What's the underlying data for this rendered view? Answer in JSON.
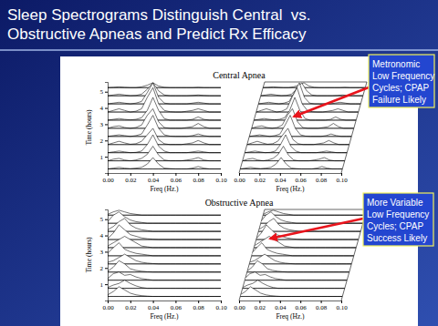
{
  "slide": {
    "title": [
      "Sleep Spectrograms Distinguish Central  vs.",
      "Obstructive Apneas and Predict Rx Efficacy"
    ],
    "annotations": [
      {
        "lines": [
          "Metronomic",
          "Low Frequency",
          "Cycles; CPAP",
          "Failure Likely"
        ]
      },
      {
        "lines": [
          "More Variable",
          "Low Frequency",
          "Cycles; CPAP",
          "Success Likely"
        ]
      }
    ]
  },
  "chart_data": [
    {
      "type": "waterfall",
      "title": "Central Apnea",
      "x_label": "Freq (Hz.)",
      "y_label": "Time (hours)",
      "xlim": [
        0,
        0.1
      ],
      "xticks": [
        {
          "value": 0,
          "label": "0.00"
        },
        {
          "value": 0.02,
          "label": "0.02"
        },
        {
          "value": 0.04,
          "label": "0.04"
        },
        {
          "value": 0.06,
          "label": "0.06"
        },
        {
          "value": 0.08,
          "label": "0.08"
        },
        {
          "value": 0.1,
          "label": "0.10"
        }
      ],
      "ylim": [
        0,
        5.6
      ],
      "yticks": [
        1,
        2,
        3,
        4,
        5
      ],
      "x": [
        0,
        0.005,
        0.01,
        0.015,
        0.02,
        0.025,
        0.03,
        0.035,
        0.04,
        0.045,
        0.05,
        0.055,
        0.06,
        0.065,
        0.07,
        0.075,
        0.08,
        0.085,
        0.09,
        0.095,
        0.1
      ],
      "series": [
        {
          "time": 0.25,
          "values": [
            0,
            0.05,
            0.1,
            0.05,
            0.02,
            0.05,
            0.1,
            0.3,
            0.7,
            0.3,
            0.05,
            0.02,
            0,
            0,
            0,
            0.05,
            0.15,
            0.05,
            0,
            0,
            0
          ]
        },
        {
          "time": 0.75,
          "values": [
            0,
            0.1,
            0.15,
            0.05,
            0,
            0.05,
            0.15,
            0.4,
            0.9,
            0.35,
            0.05,
            0,
            0,
            0,
            0.05,
            0.1,
            0.2,
            0.05,
            0,
            0,
            0
          ]
        },
        {
          "time": 1.25,
          "values": [
            0,
            0.05,
            0.1,
            0.05,
            0,
            0.02,
            0.1,
            0.5,
            1.1,
            0.4,
            0.1,
            0,
            0,
            0,
            0,
            0.05,
            0.1,
            0.05,
            0,
            0,
            0
          ]
        },
        {
          "time": 1.75,
          "values": [
            0,
            0.1,
            0.2,
            0.1,
            0.02,
            0.05,
            0.2,
            0.6,
            1.0,
            0.3,
            0.05,
            0,
            0,
            0,
            0.05,
            0.1,
            0.25,
            0.1,
            0,
            0,
            0
          ]
        },
        {
          "time": 2.25,
          "values": [
            0,
            0.05,
            0.1,
            0.05,
            0,
            0.05,
            0.15,
            0.7,
            1.3,
            0.5,
            0.1,
            0.02,
            0,
            0,
            0,
            0.05,
            0.15,
            0.05,
            0,
            0,
            0
          ]
        },
        {
          "time": 2.75,
          "values": [
            0,
            0.1,
            0.15,
            0.05,
            0,
            0.05,
            0.2,
            0.8,
            1.2,
            0.4,
            0.05,
            0,
            0,
            0,
            0.05,
            0.1,
            0.3,
            0.1,
            0,
            0,
            0
          ]
        },
        {
          "time": 3.25,
          "values": [
            0,
            0.05,
            0.1,
            0.05,
            0.02,
            0.05,
            0.15,
            0.6,
            1.4,
            0.6,
            0.1,
            0,
            0,
            0,
            0,
            0.05,
            0.2,
            0.05,
            0,
            0,
            0
          ]
        },
        {
          "time": 3.75,
          "values": [
            0,
            0.1,
            0.2,
            0.1,
            0,
            0.05,
            0.2,
            0.9,
            1.5,
            0.5,
            0.1,
            0.02,
            0,
            0,
            0.05,
            0.1,
            0.2,
            0.1,
            0,
            0,
            0
          ]
        },
        {
          "time": 4.25,
          "values": [
            0,
            0.05,
            0.1,
            0.05,
            0,
            0.05,
            0.15,
            0.7,
            1.3,
            0.4,
            0.05,
            0,
            0,
            0,
            0,
            0.05,
            0.1,
            0.05,
            0,
            0,
            0
          ]
        },
        {
          "time": 4.75,
          "values": [
            0,
            0.05,
            0.1,
            0.05,
            0,
            0.02,
            0.1,
            0.4,
            0.8,
            0.3,
            0.05,
            0,
            0,
            0,
            0,
            0.02,
            0.05,
            0.02,
            0,
            0,
            0
          ]
        },
        {
          "time": 5.25,
          "values": [
            0,
            0.02,
            0.05,
            0.02,
            0,
            0,
            0.05,
            0.15,
            0.3,
            0.1,
            0.02,
            0,
            0,
            0,
            0,
            0,
            0.02,
            0,
            0,
            0,
            0
          ]
        }
      ]
    },
    {
      "type": "waterfall",
      "title": "Obstructive Apnea",
      "x_label": "Freq (Hz.)",
      "y_label": "Time (hours)",
      "xlim": [
        0,
        0.1
      ],
      "xticks": [
        {
          "value": 0,
          "label": "0.00"
        },
        {
          "value": 0.02,
          "label": "0.02"
        },
        {
          "value": 0.04,
          "label": "0.04"
        },
        {
          "value": 0.06,
          "label": "0.06"
        },
        {
          "value": 0.08,
          "label": "0.08"
        },
        {
          "value": 0.1,
          "label": "0.10"
        }
      ],
      "ylim": [
        0,
        5.6
      ],
      "yticks": [
        1,
        2,
        3,
        4,
        5
      ],
      "x": [
        0,
        0.005,
        0.01,
        0.015,
        0.02,
        0.025,
        0.03,
        0.035,
        0.04,
        0.045,
        0.05,
        0.055,
        0.06,
        0.065,
        0.07,
        0.075,
        0.08,
        0.085,
        0.09,
        0.095,
        0.1
      ],
      "series": [
        {
          "time": 0.25,
          "values": [
            0.1,
            0.3,
            0.6,
            0.4,
            0.2,
            0.1,
            0.05,
            0.02,
            0,
            0,
            0,
            0,
            0,
            0,
            0,
            0,
            0,
            0,
            0,
            0,
            0
          ]
        },
        {
          "time": 0.75,
          "values": [
            0.05,
            0.2,
            0.3,
            0.5,
            0.3,
            0.15,
            0.05,
            0,
            0,
            0,
            0,
            0,
            0,
            0,
            0,
            0,
            0,
            0,
            0,
            0,
            0
          ]
        },
        {
          "time": 1.25,
          "values": [
            0.1,
            0.4,
            0.5,
            0.3,
            0.35,
            0.2,
            0.1,
            0.05,
            0,
            0,
            0,
            0,
            0,
            0,
            0,
            0,
            0,
            0,
            0,
            0,
            0
          ]
        },
        {
          "time": 1.75,
          "values": [
            0.05,
            0.3,
            0.7,
            0.5,
            0.2,
            0.1,
            0.05,
            0.02,
            0,
            0,
            0,
            0,
            0,
            0,
            0,
            0,
            0,
            0,
            0,
            0,
            0
          ]
        },
        {
          "time": 2.25,
          "values": [
            0.1,
            0.2,
            0.4,
            0.6,
            0.4,
            0.2,
            0.1,
            0.05,
            0.02,
            0,
            0,
            0,
            0,
            0,
            0,
            0,
            0,
            0,
            0,
            0,
            0
          ]
        },
        {
          "time": 2.75,
          "values": [
            0.15,
            0.5,
            0.8,
            0.4,
            0.25,
            0.15,
            0.1,
            0.05,
            0,
            0,
            0,
            0,
            0,
            0,
            0,
            0,
            0,
            0,
            0,
            0,
            0
          ]
        },
        {
          "time": 3.25,
          "values": [
            0.1,
            0.3,
            0.5,
            0.7,
            0.5,
            0.3,
            0.1,
            0.05,
            0,
            0,
            0,
            0,
            0,
            0,
            0,
            0,
            0,
            0,
            0,
            0,
            0
          ]
        },
        {
          "time": 3.75,
          "values": [
            0.05,
            0.4,
            0.9,
            0.6,
            0.3,
            0.2,
            0.1,
            0.05,
            0.02,
            0,
            0,
            0,
            0,
            0,
            0,
            0,
            0,
            0,
            0,
            0,
            0
          ]
        },
        {
          "time": 4.25,
          "values": [
            0.1,
            0.3,
            0.6,
            0.8,
            0.4,
            0.2,
            0.1,
            0.05,
            0,
            0,
            0,
            0,
            0,
            0,
            0,
            0,
            0,
            0,
            0,
            0,
            0
          ]
        },
        {
          "time": 4.75,
          "values": [
            0.1,
            0.5,
            0.7,
            0.4,
            0.2,
            0.1,
            0.05,
            0,
            0,
            0,
            0,
            0,
            0,
            0,
            0,
            0,
            0,
            0,
            0,
            0,
            0
          ]
        },
        {
          "time": 5.25,
          "values": [
            0.05,
            0.2,
            0.3,
            0.2,
            0.1,
            0.05,
            0,
            0,
            0,
            0,
            0,
            0,
            0,
            0,
            0,
            0,
            0,
            0,
            0,
            0,
            0
          ]
        }
      ]
    }
  ]
}
